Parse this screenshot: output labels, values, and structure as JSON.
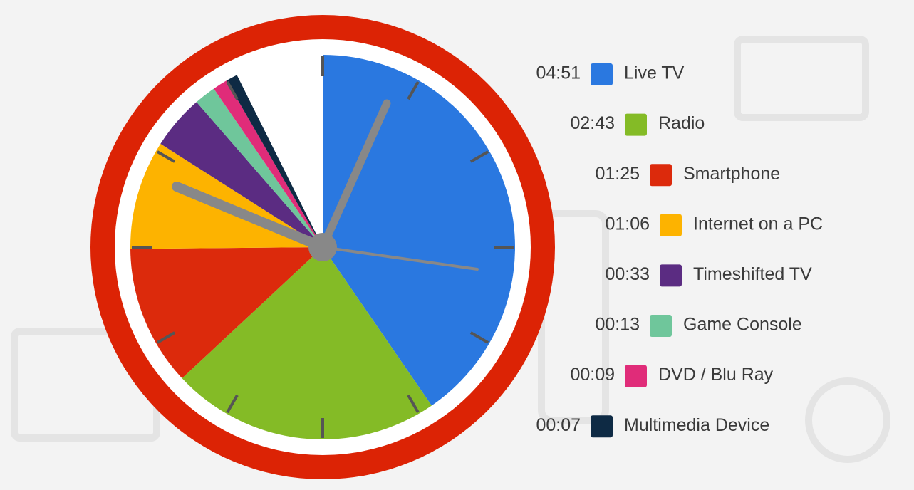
{
  "chart_data": {
    "type": "pie",
    "categories": [
      "Live TV",
      "Radio",
      "Smartphone",
      "Internet on a PC",
      "Timeshifted TV",
      "Game Console",
      "DVD / Blu Ray",
      "Multimedia Device"
    ],
    "values": [
      291,
      163,
      85,
      66,
      33,
      13,
      9,
      7
    ],
    "value_labels": [
      "04:51",
      "02:43",
      "01:25",
      "01:06",
      "00:33",
      "00:13",
      "00:09",
      "00:07"
    ],
    "colors": [
      "#2a78e0",
      "#84bb26",
      "#dc2a0c",
      "#fdb300",
      "#5b2c82",
      "#6fc69b",
      "#e02c79",
      "#0e2a44"
    ],
    "lim": [
      0,
      720
    ],
    "ticks": [
      0,
      60,
      120,
      180,
      240,
      300,
      360,
      420,
      480,
      540,
      600,
      660
    ]
  }
}
